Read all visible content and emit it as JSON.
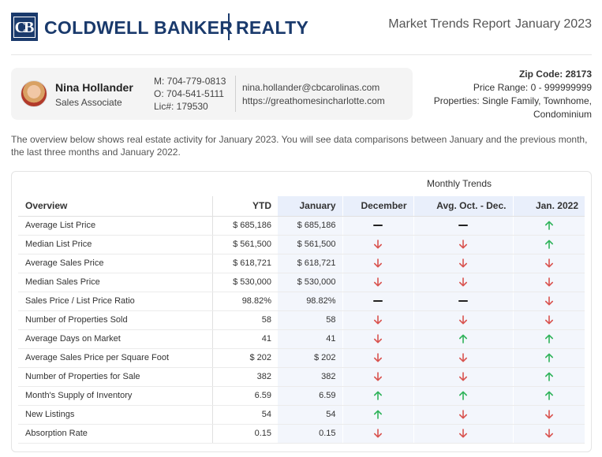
{
  "header": {
    "brand_mark": "CB",
    "brand_name": "COLDWELL BANKER",
    "brand_suffix": "REALTY",
    "report_title": "Market Trends Report",
    "report_month": "January 2023"
  },
  "agent": {
    "name": "Nina Hollander",
    "role": "Sales Associate",
    "mobile": "M: 704-779-0813",
    "office": "O: 704-541-5111",
    "license": "Lic#: 179530",
    "email": "nina.hollander@cbcarolinas.com",
    "website": "https://greathomesincharlotte.com"
  },
  "market": {
    "zip": "Zip Code: 28173",
    "price_range": "Price Range: 0 - 999999999",
    "properties_line1": "Properties: Single Family, Townhome,",
    "properties_line2": "Condominium"
  },
  "intro": "The overview below shows real estate activity for January 2023. You will see data comparisons between January and the previous month, the last three months and January 2022.",
  "table": {
    "group_header": "Monthly Trends",
    "columns": [
      "Overview",
      "YTD",
      "January",
      "December",
      "Avg. Oct. - Dec.",
      "Jan. 2022"
    ],
    "rows": [
      {
        "label": "Average List Price",
        "ytd": "$ 685,186",
        "jan": "$ 685,186",
        "dec": "flat",
        "avg": "flat",
        "y22": "up"
      },
      {
        "label": "Median List Price",
        "ytd": "$ 561,500",
        "jan": "$ 561,500",
        "dec": "down",
        "avg": "down",
        "y22": "up"
      },
      {
        "label": "Average Sales Price",
        "ytd": "$ 618,721",
        "jan": "$ 618,721",
        "dec": "down",
        "avg": "down",
        "y22": "down"
      },
      {
        "label": "Median Sales Price",
        "ytd": "$ 530,000",
        "jan": "$ 530,000",
        "dec": "down",
        "avg": "down",
        "y22": "down"
      },
      {
        "label": "Sales Price / List Price Ratio",
        "ytd": "98.82%",
        "jan": "98.82%",
        "dec": "flat",
        "avg": "flat",
        "y22": "down"
      },
      {
        "label": "Number of Properties Sold",
        "ytd": "58",
        "jan": "58",
        "dec": "down",
        "avg": "down",
        "y22": "down"
      },
      {
        "label": "Average Days on Market",
        "ytd": "41",
        "jan": "41",
        "dec": "down",
        "avg": "up",
        "y22": "up"
      },
      {
        "label": "Average Sales Price per Square Foot",
        "ytd": "$ 202",
        "jan": "$ 202",
        "dec": "down",
        "avg": "down",
        "y22": "up"
      },
      {
        "label": "Number of Properties for Sale",
        "ytd": "382",
        "jan": "382",
        "dec": "down",
        "avg": "down",
        "y22": "up"
      },
      {
        "label": "Month's Supply of Inventory",
        "ytd": "6.59",
        "jan": "6.59",
        "dec": "up",
        "avg": "up",
        "y22": "up"
      },
      {
        "label": "New Listings",
        "ytd": "54",
        "jan": "54",
        "dec": "up",
        "avg": "down",
        "y22": "down"
      },
      {
        "label": "Absorption Rate",
        "ytd": "0.15",
        "jan": "0.15",
        "dec": "down",
        "avg": "down",
        "y22": "down"
      }
    ]
  },
  "colors": {
    "brand": "#1a3a6c",
    "up": "#2fb35a",
    "down": "#d9534f",
    "flat": "#222222"
  },
  "icons": {
    "up": "arrow-up-icon",
    "down": "arrow-down-icon",
    "flat": "dash-icon"
  }
}
